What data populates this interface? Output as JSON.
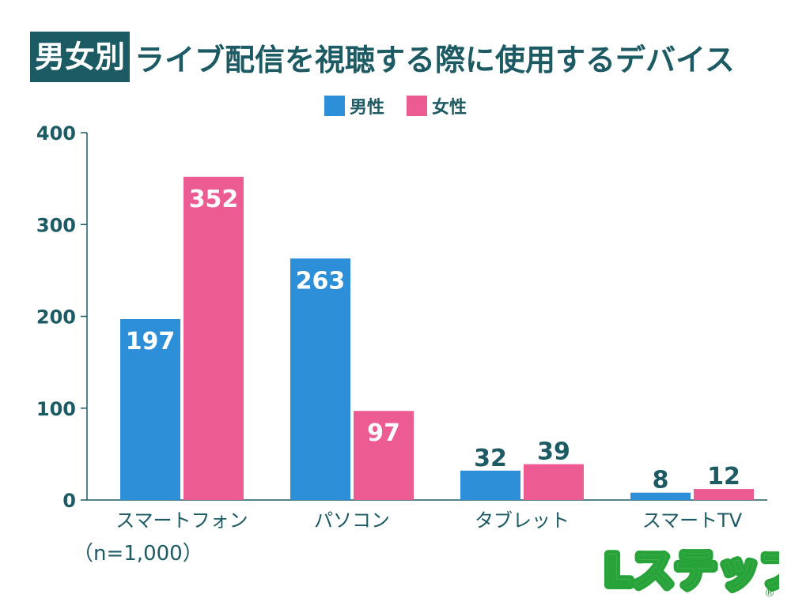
{
  "title": {
    "tag": "男女別",
    "main": "ライブ配信を視聴する際に使用するデバイス"
  },
  "note": "（n=1,000）",
  "logo": {
    "text": "Lステップ",
    "mark": "®"
  },
  "colors": {
    "male": "#2e8fd9",
    "female": "#ec5b92",
    "text": "#1c5a64",
    "axis": "#1c5a64"
  },
  "chart_data": {
    "type": "bar",
    "categories": [
      "スマートフォン",
      "パソコン",
      "タブレット",
      "スマートTV"
    ],
    "series": [
      {
        "name": "男性",
        "values": [
          197,
          263,
          32,
          8
        ]
      },
      {
        "name": "女性",
        "values": [
          352,
          97,
          39,
          12
        ]
      }
    ],
    "ylim": [
      0,
      400
    ],
    "yticks": [
      0,
      100,
      200,
      300,
      400
    ],
    "legend": "top-center",
    "grid": false
  }
}
